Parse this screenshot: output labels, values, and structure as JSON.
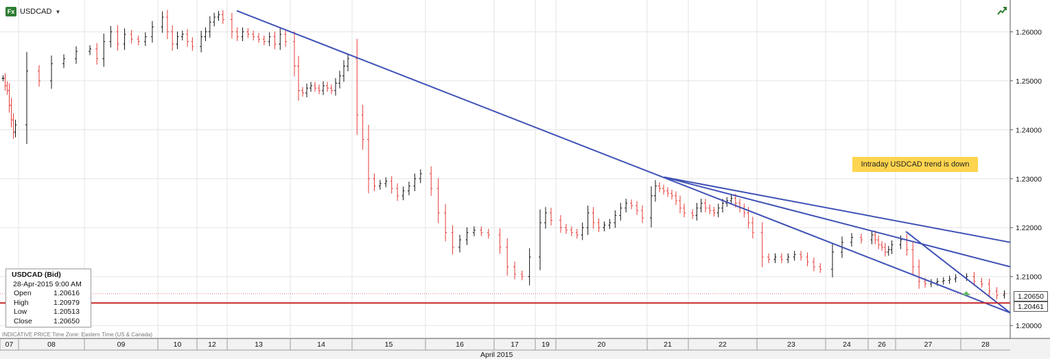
{
  "symbol": "USDCAD",
  "annotation": "Intraday USDCAD trend is down",
  "info_box": {
    "title": "USDCAD (Bid)",
    "date": "28-Apr-2015 9:00 AM",
    "rows": [
      {
        "label": "Open",
        "value": "1.20616"
      },
      {
        "label": "High",
        "value": "1.20979"
      },
      {
        "label": "Low",
        "value": "1.20513"
      },
      {
        "label": "Close",
        "value": "1.20650"
      }
    ]
  },
  "footer_note": "INDICATIVE PRICE   Time Zone: Eastern Time (US & Canada)",
  "price_tags": {
    "current": "1.20650",
    "level": "1.20461"
  },
  "colors": {
    "up": "#111111",
    "down": "#e53935",
    "trendline": "#3f51b5",
    "support": "#c62828",
    "annotation_bg": "#ffd54f"
  },
  "chart_data": {
    "type": "candlestick",
    "month_label": "April 2015",
    "y_ticks": [
      "1.26000",
      "1.25000",
      "1.24000",
      "1.23000",
      "1.22000",
      "1.21000",
      "1.20000"
    ],
    "ylim": [
      1.1975,
      1.2665
    ],
    "x_labels": [
      "07",
      "08",
      "09",
      "10",
      "12",
      "13",
      "14",
      "15",
      "16",
      "17",
      "19",
      "20",
      "21",
      "22",
      "23",
      "24",
      "26",
      "27",
      "28"
    ],
    "horizontal_line": 1.20461,
    "current_price": 1.2065,
    "trendlines": [
      {
        "from": {
          "label": "13",
          "y": 1.2643
        },
        "to": {
          "label": "28",
          "y": 1.2064
        }
      },
      {
        "from": {
          "label": "21",
          "y": 1.2303
        },
        "to": {
          "label": "28",
          "y": 1.217
        }
      },
      {
        "from": {
          "label": "21",
          "y": 1.2303
        },
        "to": {
          "label": "28",
          "y": 1.212
        }
      },
      {
        "from": {
          "label": "27",
          "y": 1.2192
        },
        "to": {
          "label": "28",
          "y": 1.2074
        }
      }
    ],
    "price_path": [
      [
        1.2505,
        1.249,
        1.248,
        1.245,
        1.242,
        1.2395,
        1.241
      ],
      [
        1.252,
        1.25,
        1.2535,
        1.2545,
        1.256
      ],
      [
        1.2565,
        1.2545,
        1.258,
        1.26,
        1.2575,
        1.2595,
        1.2585,
        1.258,
        1.259,
        1.261
      ],
      [
        1.263,
        1.26,
        1.2575,
        1.259,
        1.2595,
        1.258,
        1.257
      ],
      [
        1.259,
        1.26,
        1.262,
        1.263,
        1.2635,
        1.2625
      ],
      [
        1.26,
        1.259,
        1.26,
        1.2595,
        1.259,
        1.2585,
        1.258,
        1.259,
        1.2575,
        1.2595,
        1.258
      ],
      [
        1.253,
        1.248,
        1.2475,
        1.2485,
        1.249,
        1.2485,
        1.248,
        1.249,
        1.2485,
        1.248,
        1.2495,
        1.251,
        1.253,
        1.2545
      ],
      [
        1.243,
        1.238,
        1.23,
        1.2285,
        1.229,
        1.2295,
        1.228,
        1.2265,
        1.2275,
        1.2285,
        1.23,
        1.231
      ],
      [
        1.228,
        1.223,
        1.219,
        1.216,
        1.2175,
        1.219,
        1.2195,
        1.219,
        1.2185
      ],
      [
        1.216,
        1.212,
        1.2105,
        1.21,
        1.214
      ],
      [
        1.221,
        1.223,
        1.2215
      ],
      [
        1.22,
        1.2195,
        1.219,
        1.2185,
        1.22,
        1.223,
        1.221,
        1.22,
        1.2205,
        1.221,
        1.2225,
        1.224,
        1.225,
        1.2245,
        1.2235,
        1.222
      ],
      [
        1.2265,
        1.2285,
        1.228,
        1.2275,
        1.227,
        1.2265,
        1.2255,
        1.224,
        1.223
      ],
      [
        1.2225,
        1.224,
        1.225,
        1.224,
        1.2235,
        1.223,
        1.224,
        1.225,
        1.2255,
        1.226,
        1.225,
        1.224,
        1.223,
        1.221,
        1.219
      ],
      [
        1.214,
        1.2135,
        1.214,
        1.2135,
        1.214,
        1.2145,
        1.214,
        1.213,
        1.212,
        1.2115
      ],
      [
        1.215,
        1.217,
        1.218,
        1.2175
      ],
      [
        1.2185,
        1.2175,
        1.2165,
        1.216,
        1.215,
        1.2155,
        1.2165
      ],
      [
        1.2175,
        1.2155,
        1.212,
        1.209,
        1.2085,
        1.2088,
        1.209,
        1.2092,
        1.2095,
        1.2098
      ],
      [
        1.21,
        1.209,
        1.2085,
        1.207,
        1.2062,
        1.2065
      ]
    ]
  }
}
